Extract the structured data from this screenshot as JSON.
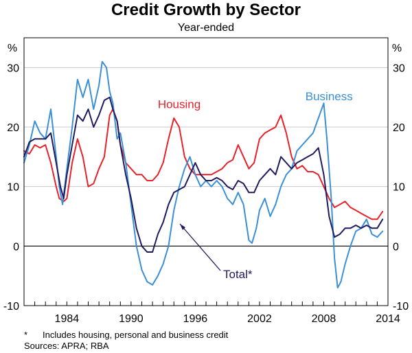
{
  "chart_data": {
    "type": "line",
    "title": "Credit Growth by Sector",
    "subtitle": "Year-ended",
    "unit_left": "%",
    "unit_right": "%",
    "ylim": [
      -10,
      35
    ],
    "yticks": [
      -10,
      0,
      10,
      20,
      30
    ],
    "xlim": [
      1980,
      2014
    ],
    "xticks": [
      1984,
      1990,
      1996,
      2002,
      2008,
      2014
    ],
    "grid": true,
    "zero_line": true,
    "series": [
      {
        "name": "Housing",
        "label": "Housing",
        "color": "#e8202a",
        "x": [
          1980,
          1980.5,
          1981,
          1981.5,
          1982,
          1982.5,
          1983,
          1983.3,
          1983.7,
          1984,
          1984.5,
          1985,
          1985.5,
          1986,
          1986.5,
          1987,
          1987.5,
          1988,
          1988.3,
          1988.7,
          1989,
          1989.5,
          1990,
          1990.5,
          1991,
          1991.5,
          1992,
          1992.5,
          1993,
          1993.5,
          1994,
          1994.5,
          1995,
          1995.5,
          1996,
          1996.5,
          1997,
          1997.5,
          1998,
          1998.5,
          1999,
          1999.5,
          2000,
          2000.5,
          2001,
          2001.5,
          2002,
          2002.5,
          2003,
          2003.5,
          2004,
          2004.5,
          2005,
          2005.5,
          2006,
          2006.5,
          2007,
          2007.5,
          2008,
          2008.5,
          2009,
          2009.5,
          2010,
          2010.5,
          2011,
          2011.5,
          2012,
          2012.5,
          2013,
          2013.5
        ],
        "values": [
          16,
          15.5,
          17,
          16.5,
          17,
          14,
          10,
          8,
          7.5,
          8,
          14,
          18,
          15,
          10,
          10.5,
          13,
          15,
          22,
          23,
          21,
          17,
          14,
          13,
          12,
          12,
          11,
          11,
          12,
          14,
          18,
          21.5,
          20,
          15,
          13,
          12,
          12,
          12,
          12,
          12.5,
          13,
          14,
          14.5,
          17,
          15,
          13,
          14,
          18,
          19,
          19.5,
          20,
          22,
          19,
          15,
          13,
          13.5,
          12.5,
          12.5,
          12,
          10,
          8,
          6.5,
          7,
          7.5,
          6.5,
          6,
          5.5,
          5,
          4.5,
          4.5,
          5.8
        ]
      },
      {
        "name": "Business",
        "label": "Business",
        "color": "#3a8fd6",
        "x": [
          1980,
          1980.5,
          1981,
          1981.5,
          1982,
          1982.5,
          1983,
          1983.3,
          1983.6,
          1984,
          1984.5,
          1985,
          1985.5,
          1986,
          1986.5,
          1987,
          1987.3,
          1987.7,
          1988,
          1988.3,
          1988.7,
          1989,
          1989.5,
          1990,
          1990.5,
          1991,
          1991.5,
          1992,
          1992.5,
          1993,
          1993.5,
          1994,
          1994.5,
          1995,
          1995.5,
          1996,
          1996.5,
          1997,
          1997.5,
          1998,
          1998.5,
          1999,
          1999.5,
          2000,
          2000.5,
          2001,
          2001.3,
          2001.7,
          2002,
          2002.5,
          2003,
          2003.5,
          2004,
          2004.5,
          2005,
          2005.5,
          2006,
          2006.5,
          2007,
          2007.5,
          2008,
          2008.3,
          2008.7,
          2009,
          2009.3,
          2009.6,
          2010,
          2010.5,
          2011,
          2011.5,
          2012,
          2012.5,
          2013,
          2013.5
        ],
        "values": [
          14,
          17,
          21,
          19,
          18,
          23,
          15,
          10,
          7,
          13,
          20,
          28,
          25,
          28,
          23,
          27,
          31,
          30,
          26,
          24,
          18,
          19,
          14,
          7,
          0,
          -4,
          -6,
          -6.5,
          -5,
          -3,
          0,
          6,
          10,
          13,
          15,
          12,
          10,
          11,
          10,
          11,
          10,
          8,
          7,
          9,
          7,
          1,
          0.5,
          3,
          6,
          8,
          5,
          7,
          10,
          12,
          13,
          16,
          17,
          18,
          19,
          21.5,
          24,
          18,
          8,
          -2,
          -7,
          -6,
          -3,
          0,
          2.5,
          3,
          4.5,
          2,
          1.5,
          2.5
        ]
      },
      {
        "name": "Total*",
        "label": "Total*",
        "color": "#1e1a5e",
        "x": [
          1980,
          1980.5,
          1981,
          1981.5,
          1982,
          1982.5,
          1983,
          1983.4,
          1983.7,
          1984,
          1984.5,
          1985,
          1985.5,
          1986,
          1986.5,
          1987,
          1987.5,
          1988,
          1988.3,
          1988.7,
          1989,
          1989.5,
          1990,
          1990.5,
          1991,
          1991.5,
          1992,
          1992.5,
          1993,
          1993.5,
          1994,
          1994.5,
          1995,
          1995.5,
          1996,
          1996.5,
          1997,
          1997.5,
          1998,
          1998.5,
          1999,
          1999.5,
          2000,
          2000.5,
          2001,
          2001.5,
          2002,
          2002.5,
          2003,
          2003.5,
          2004,
          2004.5,
          2005,
          2005.5,
          2006,
          2006.5,
          2007,
          2007.5,
          2008,
          2008.5,
          2009,
          2009.5,
          2010,
          2010.5,
          2011,
          2011.5,
          2012,
          2012.5,
          2013,
          2013.5
        ],
        "values": [
          15,
          17.5,
          18,
          18,
          18,
          19,
          14,
          10,
          8,
          12,
          17,
          22,
          21,
          23,
          20,
          22,
          24.5,
          25,
          23,
          21,
          17,
          12,
          8,
          3,
          0,
          -1,
          -1,
          2,
          4,
          7,
          9,
          9.5,
          10,
          12,
          14,
          12,
          11,
          11,
          11.5,
          11,
          10,
          9.5,
          11,
          10.5,
          9,
          9,
          11,
          12,
          13,
          12,
          15,
          14,
          13,
          14,
          14.5,
          15,
          15.5,
          16.5,
          12,
          5,
          1.5,
          2,
          3,
          3,
          3.5,
          3,
          3.5,
          3,
          3,
          4.5
        ]
      }
    ]
  },
  "annotations": {
    "total_label": "Total*",
    "footnote_marker": "*",
    "footnote_text": "Includes housing, personal and business credit",
    "sources": "Sources: APRA; RBA"
  }
}
